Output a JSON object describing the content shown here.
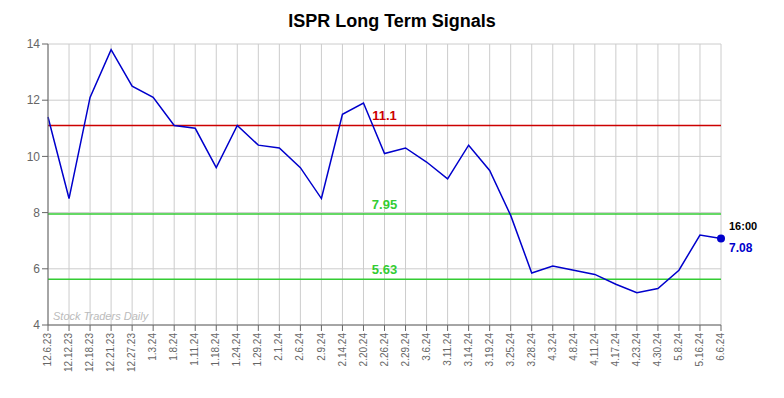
{
  "chart_data": {
    "type": "line",
    "title": "ISPR Long Term Signals",
    "categories": [
      "12.6.23",
      "12.12.23",
      "12.18.23",
      "12.21.23",
      "12.27.23",
      "1.3.24",
      "1.8.24",
      "1.11.24",
      "1.18.24",
      "1.24.24",
      "1.29.24",
      "2.1.24",
      "2.6.24",
      "2.9.24",
      "2.14.24",
      "2.20.24",
      "2.26.24",
      "2.29.24",
      "3.6.24",
      "3.11.24",
      "3.14.24",
      "3.19.24",
      "3.25.24",
      "3.28.24",
      "4.3.24",
      "4.8.24",
      "4.11.24",
      "4.17.24",
      "4.23.24",
      "4.30.24",
      "5.8.24",
      "5.16.24",
      "6.6.24"
    ],
    "values": [
      11.4,
      8.5,
      12.1,
      13.8,
      12.5,
      12.1,
      11.1,
      11.0,
      9.6,
      11.1,
      10.4,
      10.3,
      9.6,
      8.5,
      11.5,
      11.9,
      10.1,
      10.3,
      9.8,
      9.2,
      10.4,
      9.5,
      7.9,
      5.85,
      6.1,
      5.95,
      5.8,
      5.45,
      5.15,
      5.3,
      5.95,
      7.2,
      7.08
    ],
    "color": "#0000cc",
    "ylim": [
      4,
      14
    ],
    "yticks": [
      4,
      6,
      8,
      10,
      12,
      14
    ],
    "grid": true,
    "reference_lines": [
      {
        "value": 11.1,
        "label": "11.1",
        "color": "#cc0000"
      },
      {
        "value": 7.95,
        "label": "7.95",
        "color": "#33cc33"
      },
      {
        "value": 5.63,
        "label": "5.63",
        "color": "#33cc33"
      }
    ],
    "annotations": [
      {
        "text": "16:00",
        "x": "6.6.24",
        "y": 7.08
      },
      {
        "text": "7.08",
        "x": "6.6.24",
        "y": 7.08,
        "marker": "circle"
      }
    ],
    "watermark": "Stock Traders Daily"
  }
}
